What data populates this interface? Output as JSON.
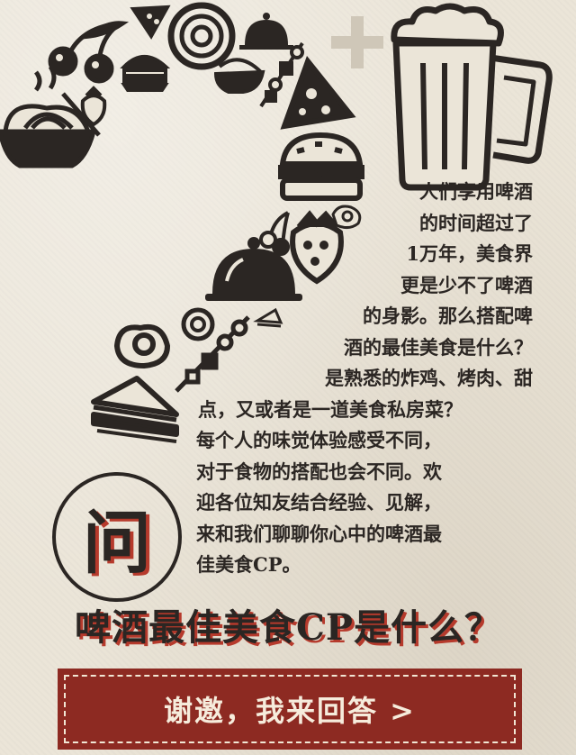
{
  "intro": {
    "lines": [
      "人们享用啤酒",
      "的时间超过了",
      "1万年，美食界",
      "更是少不了啤酒",
      "的身影。那么搭配啤",
      "酒的最佳美食是什么？",
      "是熟悉的炸鸡、烤肉、甜",
      "点，又或者是一道美食私房菜？",
      "每个人的味觉体验感受不同，",
      "对于食物的搭配也会不同。欢",
      "迎各位知友结合经验、见解，",
      "来和我们聊聊你心中的啤酒最",
      "佳美食CP。"
    ]
  },
  "badge": {
    "glyph": "问"
  },
  "headline": "啤酒最佳美食CP是什么？",
  "cta": {
    "label": "谢邀，我来回答 >"
  },
  "colors": {
    "ink": "#2b2623",
    "accent_red": "#b63a2c",
    "button_bg": "#8d2a22",
    "paper": "#ebe5d8"
  },
  "icons": [
    "noodle-bowl-icon",
    "cherries-icon",
    "burger-icon",
    "pizza-slice-icon",
    "donut-icon",
    "food-cloche-icon",
    "kebab-icon",
    "strawberry-icon",
    "fried-egg-icon",
    "sandwich-icon",
    "beer-mug-icon",
    "plus-icon"
  ]
}
